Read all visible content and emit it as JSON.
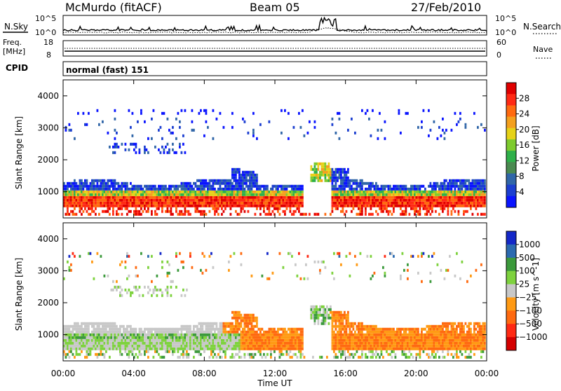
{
  "header": {
    "station": "McMurdo (fitACF)",
    "beam": "Beam 05",
    "date": "27/Feb/2010"
  },
  "top_panels": {
    "nsky_label": "N.Sky",
    "nsearch_label": "N.Search",
    "noise_ticks": {
      "top": "10^5",
      "bottom": "10^0"
    },
    "freq_label_1": "Freq.",
    "freq_label_2": "[MHz]",
    "freq_ticks": {
      "top": "18",
      "bottom": "8"
    },
    "nave_label": "Nave",
    "nave_ticks": {
      "top": "60",
      "bottom": "0"
    },
    "cpid_label": "CPID",
    "cpid_value": "normal (fast) 151"
  },
  "chart_data": [
    {
      "type": "heatmap",
      "title": "",
      "xlabel": "Time UT",
      "ylabel": "Slant Range [km]",
      "x_ticks": [
        "00:00",
        "04:00",
        "08:00",
        "12:00",
        "16:00",
        "20:00",
        "00:00"
      ],
      "y_ticks": [
        "1000",
        "2000",
        "3000",
        "4000"
      ],
      "xlim_hours": [
        0,
        24
      ],
      "ylim_km": [
        180,
        4500
      ],
      "colorbar_label": "Power [dB]",
      "colorbar_ticks": [
        "4",
        "8",
        "12",
        "16",
        "20",
        "24",
        "28"
      ],
      "colorbar_colors": [
        "#0a14ff",
        "#1c3fd0",
        "#3066a8",
        "#4a8a50",
        "#2fb04a",
        "#7ecb2e",
        "#e6d218",
        "#f4a01e",
        "#ff6a10",
        "#ff2a14",
        "#e00000"
      ],
      "range_bands_km": [
        {
          "from": 500,
          "to": 800,
          "level": "24-28 dB"
        },
        {
          "from": 800,
          "to": 1000,
          "level": "12-20 dB"
        },
        {
          "from": 1000,
          "to": 1300,
          "level": "4-8 dB"
        }
      ]
    },
    {
      "type": "heatmap",
      "title": "",
      "xlabel": "Time UT",
      "ylabel": "Slant Range [km]",
      "x_ticks": [
        "00:00",
        "04:00",
        "08:00",
        "12:00",
        "16:00",
        "20:00",
        "00:00"
      ],
      "y_ticks": [
        "1000",
        "2000",
        "3000",
        "4000"
      ],
      "xlim_hours": [
        0,
        24
      ],
      "ylim_km": [
        180,
        4500
      ],
      "colorbar_label": "Velocity [m s^-1]",
      "colorbar_ticks": [
        "1000",
        "500",
        "100",
        "25",
        "−25",
        "−100",
        "−500",
        "−1000"
      ],
      "colorbar_colors": [
        "#1428c8",
        "#2b6ab0",
        "#3c9a3c",
        "#7ed23e",
        "#c8c8c8",
        "#ff9a14",
        "#ff6a10",
        "#ff2a14",
        "#d40000"
      ]
    }
  ]
}
